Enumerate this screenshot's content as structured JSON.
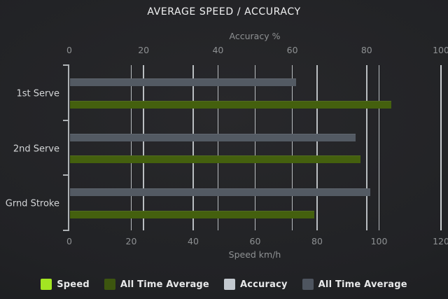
{
  "chart_data": {
    "type": "bar",
    "orientation": "horizontal",
    "title": "AVERAGE SPEED / ACCURACY",
    "categories": [
      "1st Serve",
      "2nd Serve",
      "Grnd Stroke"
    ],
    "axes": {
      "top": {
        "label": "Accuracy %",
        "min": 0,
        "max": 100,
        "ticks": [
          0,
          20,
          40,
          60,
          80,
          100
        ]
      },
      "bottom": {
        "label": "Speed km/h",
        "min": 0,
        "max": 120,
        "ticks": [
          0,
          20,
          40,
          60,
          80,
          100,
          120
        ]
      }
    },
    "series": [
      {
        "name": "Speed",
        "axis": "bottom",
        "color": "#a3e522",
        "values": [
          null,
          null,
          null
        ]
      },
      {
        "name": "All Time Average",
        "axis": "bottom",
        "color": "#44600e",
        "values": [
          104,
          94,
          79
        ]
      },
      {
        "name": "Accuracy",
        "axis": "top",
        "color": "#c3c9cf",
        "values": [
          null,
          null,
          null
        ]
      },
      {
        "name": "All Time Average",
        "axis": "top",
        "color": "#535a63",
        "values": [
          61,
          77,
          81
        ]
      }
    ],
    "legend": {
      "position": "bottom",
      "items": [
        {
          "label": "Speed",
          "color": "#a3e522"
        },
        {
          "label": "All Time Average",
          "color": "#3d560f"
        },
        {
          "label": "Accuracy",
          "color": "#c3c9cf"
        },
        {
          "label": "All Time Average",
          "color": "#4e555f"
        }
      ]
    },
    "grid": true,
    "colors": {
      "background": "#1e1f22",
      "gridline": "#c2c6c9",
      "axis_text": "#8e9193",
      "category_text": "#d3d5d7",
      "title_text": "#f1f2f3"
    }
  }
}
